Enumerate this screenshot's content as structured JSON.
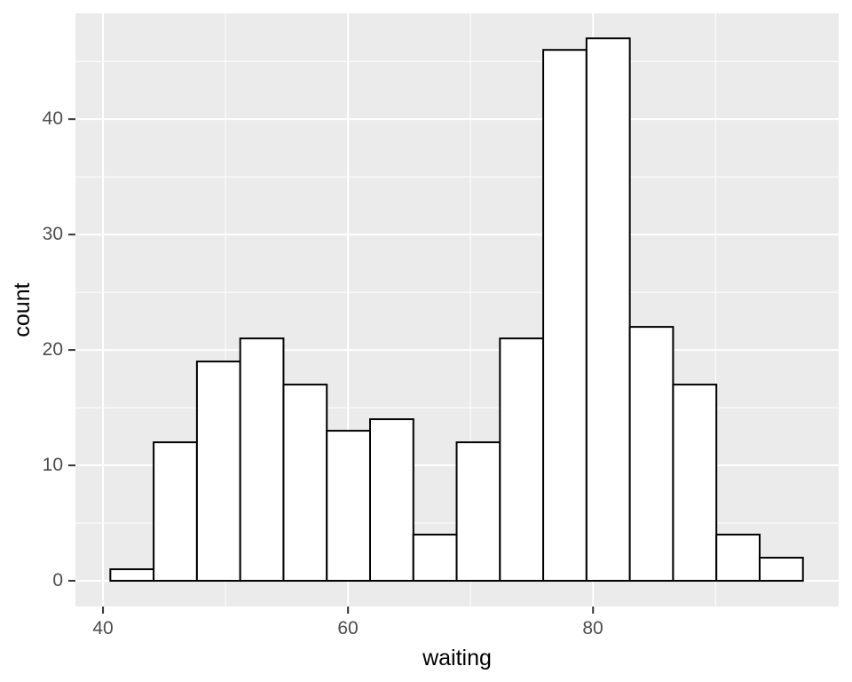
{
  "chart_data": {
    "type": "bar",
    "subtype": "histogram",
    "title": "",
    "xlabel": "waiting",
    "ylabel": "count",
    "bins": {
      "start": 40.6,
      "width": 3.5333,
      "counts": [
        1,
        12,
        19,
        21,
        17,
        13,
        14,
        4,
        12,
        21,
        46,
        47,
        22,
        17,
        4,
        2
      ]
    },
    "x_axis": {
      "lim": [
        37.75,
        100.05
      ],
      "major_ticks": [
        40,
        60,
        80
      ],
      "minor_gridlines": [
        50,
        70,
        90
      ]
    },
    "y_axis": {
      "lim": [
        -2.23,
        49.17
      ],
      "major_ticks": [
        0,
        10,
        20,
        30,
        40
      ],
      "minor_gridlines": [
        5,
        15,
        25,
        35,
        45
      ]
    },
    "legend": "none",
    "grid": "on",
    "colors": {
      "panel_background": "#EBEBEB",
      "gridline": "#FFFFFF",
      "bar_fill": "#FFFFFF",
      "bar_stroke": "#000000",
      "tick_mark": "#333333",
      "tick_label": "#4D4D4D",
      "axis_title": "#000000",
      "figure_background": "#FFFFFF"
    }
  }
}
